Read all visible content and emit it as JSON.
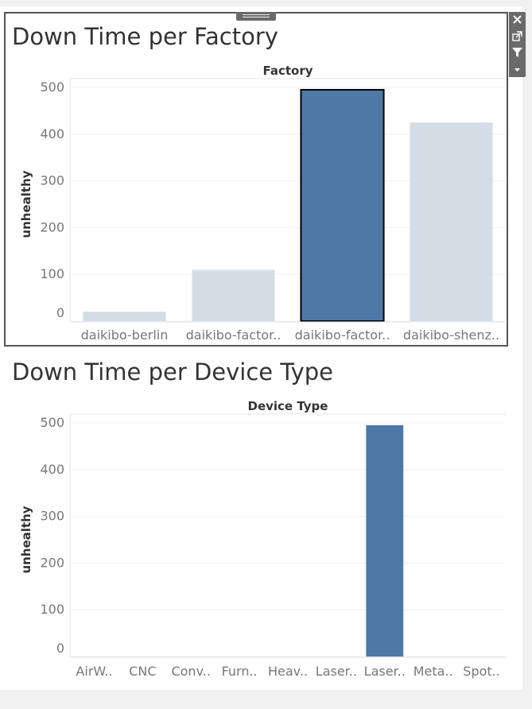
{
  "toolbar": {
    "icons": [
      "close-icon",
      "popout-icon",
      "filter-icon",
      "dropdown-icon"
    ]
  },
  "colors": {
    "selected": "#4e79a7",
    "unselected": "#d4dde6",
    "highlight_outline": "#000000",
    "panel_border": "#555555"
  },
  "chart_data": [
    {
      "type": "bar",
      "title": "Down Time per Factory",
      "header": "Factory",
      "ylabel": "unhealthy",
      "ylim": [
        0,
        500
      ],
      "yticks": [
        0,
        100,
        200,
        300,
        400,
        500
      ],
      "categories": [
        "daikibo-berlin",
        "daikibo-factor..",
        "daikibo-factor..",
        "daikibo-shenz.."
      ],
      "values": [
        20,
        110,
        495,
        425
      ],
      "selected": [
        false,
        false,
        true,
        false
      ],
      "outlined": [
        false,
        false,
        true,
        false
      ],
      "grid": true
    },
    {
      "type": "bar",
      "title": "Down Time per Device Type",
      "header": "Device Type",
      "ylabel": "unhealthy",
      "ylim": [
        0,
        500
      ],
      "yticks": [
        0,
        100,
        200,
        300,
        400,
        500
      ],
      "categories": [
        "AirW..",
        "CNC",
        "Conv..",
        "Furn..",
        "Heav..",
        "Laser..",
        "Laser..",
        "Meta..",
        "Spot.."
      ],
      "values": [
        0,
        0,
        0,
        0,
        0,
        0,
        495,
        0,
        0
      ],
      "selected": [
        false,
        false,
        false,
        false,
        false,
        false,
        true,
        false,
        false
      ],
      "outlined": [
        false,
        false,
        false,
        false,
        false,
        false,
        false,
        false,
        false
      ],
      "grid": true
    }
  ]
}
